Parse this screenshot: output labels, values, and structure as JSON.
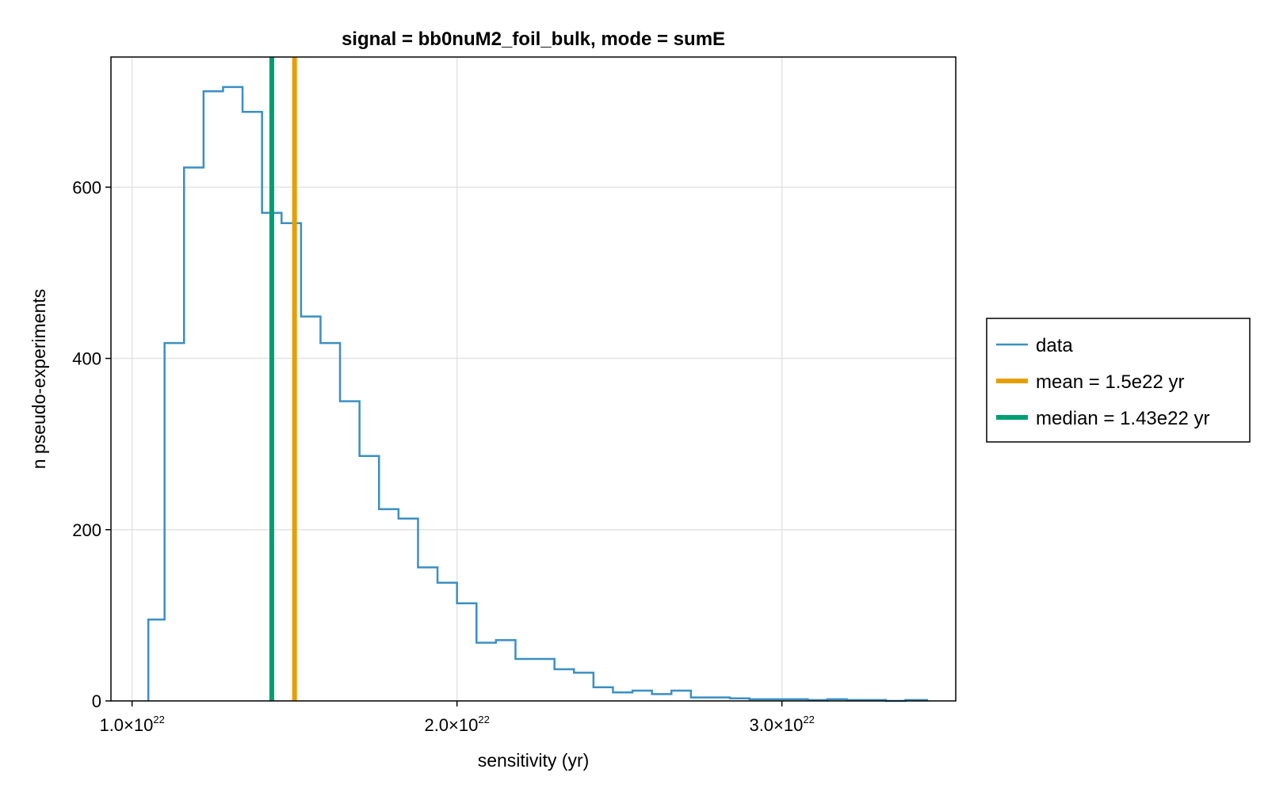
{
  "chart_data": {
    "type": "histogram",
    "title": "signal = bb0nuM2_foil_bulk, mode = sumE",
    "xlabel": "sensitivity (yr)",
    "ylabel": "n pseudo-experiments",
    "xlim": [
      9.35e+21,
      3.535e+22
    ],
    "ylim": [
      0,
      752
    ],
    "x_ticks": [
      {
        "value": 1e+22,
        "mantissa": "1.0×10",
        "exponent": "22"
      },
      {
        "value": 2e+22,
        "mantissa": "2.0×10",
        "exponent": "22"
      },
      {
        "value": 3e+22,
        "mantissa": "3.0×10",
        "exponent": "22"
      }
    ],
    "y_ticks": [
      0,
      200,
      400,
      600
    ],
    "grid": true,
    "legend_position": "right",
    "bin_edges": [
      1.05e+22,
      1.1e+22,
      1.16e+22,
      1.22e+22,
      1.28e+22,
      1.34e+22,
      1.4e+22,
      1.46e+22,
      1.52e+22,
      1.58e+22,
      1.64e+22,
      1.7e+22,
      1.76e+22,
      1.82e+22,
      1.88e+22,
      1.94e+22,
      2e+22,
      2.06e+22,
      2.12e+22,
      2.18e+22,
      2.24e+22,
      2.3e+22,
      2.36e+22,
      2.42e+22,
      2.48e+22,
      2.54e+22,
      2.6e+22,
      2.66e+22,
      2.72e+22,
      2.78e+22,
      2.84e+22,
      2.9e+22,
      2.96e+22,
      3.02e+22,
      3.08e+22,
      3.14e+22,
      3.2e+22,
      3.26e+22,
      3.32e+22,
      3.38e+22,
      3.45e+22
    ],
    "counts": [
      95,
      418,
      623,
      712,
      717,
      688,
      570,
      558,
      449,
      418,
      350,
      286,
      224,
      213,
      156,
      138,
      114,
      68,
      71,
      49,
      49,
      37,
      33,
      16,
      10,
      12,
      8,
      12,
      4,
      4,
      3,
      2,
      2,
      2,
      1,
      2,
      1,
      1,
      0,
      1
    ],
    "series": [
      {
        "name": "data",
        "kind": "step",
        "color": "#3a8fc3"
      },
      {
        "name": "mean = 1.5e22 yr",
        "kind": "vline",
        "x": 1.5e+22,
        "color": "#e69f00"
      },
      {
        "name": "median = 1.43e22 yr",
        "kind": "vline",
        "x": 1.43e+22,
        "color": "#009e73"
      }
    ]
  }
}
